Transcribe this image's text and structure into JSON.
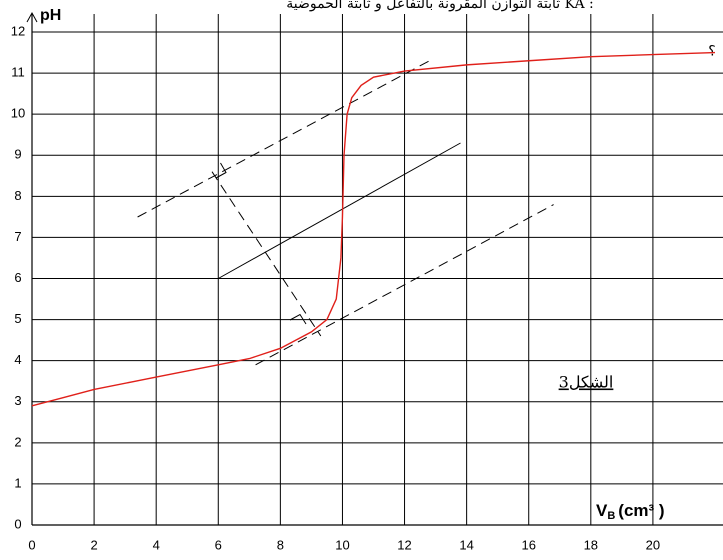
{
  "header": {
    "question": "ثابتة التوازن المقرونة بالتفاعل و ثابتة الحموضية KA :",
    "side_mark": "؟"
  },
  "chart_data": {
    "type": "line",
    "y_label": "pH",
    "x_label": {
      "symbol": "V",
      "subscript": "B",
      "unit": "(cm³ )"
    },
    "annotation": "الشكل3",
    "x": [
      0,
      1,
      2,
      4,
      6,
      7,
      8,
      9,
      9.5,
      9.8,
      9.95,
      10,
      10.05,
      10.15,
      10.3,
      10.6,
      11,
      12,
      14,
      16,
      18,
      20,
      22
    ],
    "series": [
      {
        "name": "pH",
        "color": "#e0201a",
        "values": [
          2.9,
          3.1,
          3.3,
          3.6,
          3.9,
          4.05,
          4.3,
          4.7,
          5.0,
          5.5,
          6.5,
          7.5,
          9.0,
          10.0,
          10.4,
          10.7,
          10.9,
          11.05,
          11.2,
          11.3,
          11.4,
          11.45,
          11.5
        ]
      }
    ],
    "xlim": [
      0,
      22
    ],
    "ylim": [
      0,
      12
    ],
    "xticks": [
      0,
      2,
      4,
      6,
      8,
      10,
      12,
      14,
      16,
      18,
      20
    ],
    "yticks": [
      0,
      1,
      2,
      3,
      4,
      5,
      6,
      7,
      8,
      9,
      10,
      11,
      12
    ],
    "grid": true
  }
}
